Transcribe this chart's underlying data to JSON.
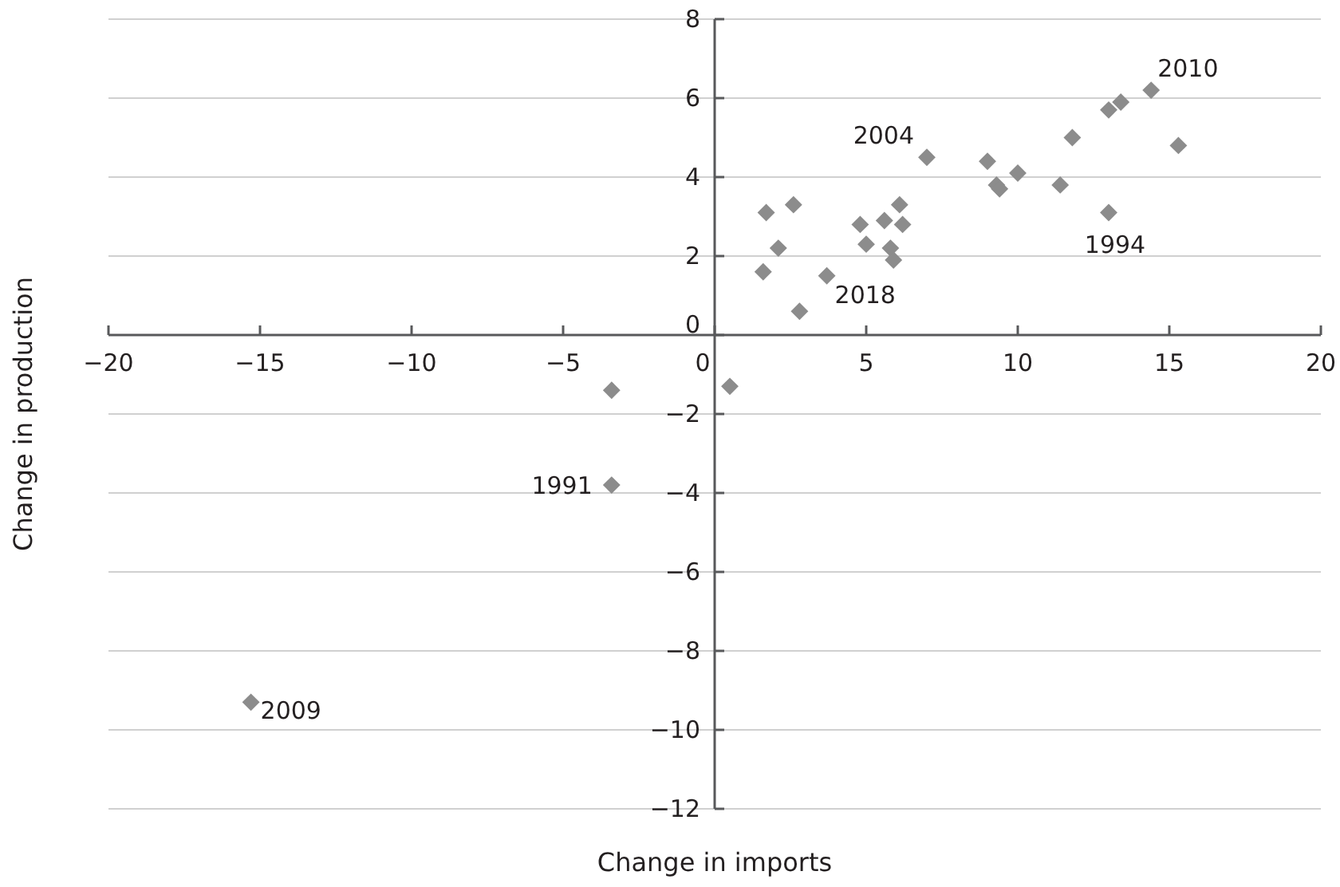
{
  "chart_data": {
    "type": "scatter",
    "xlabel": "Change in imports",
    "ylabel": "Change in production",
    "x": [
      1.6,
      1.7,
      2.1,
      2.6,
      2.8,
      3.7,
      4.8,
      5.0,
      5.6,
      5.8,
      5.9,
      6.1,
      6.2,
      7.0,
      9.0,
      9.3,
      9.4,
      10.0,
      11.4,
      11.8,
      13.0,
      13.4,
      14.4,
      15.3,
      13.0,
      0.5,
      -3.4,
      -3.4,
      -15.3
    ],
    "series": [
      {
        "color": "#8c8c8c",
        "values": [
          1.6,
          3.1,
          2.2,
          3.3,
          0.6,
          1.5,
          2.8,
          2.3,
          2.9,
          2.2,
          1.9,
          3.3,
          2.8,
          4.5,
          4.4,
          3.8,
          3.7,
          4.1,
          3.8,
          5.0,
          5.7,
          5.9,
          6.2,
          4.8,
          3.1,
          -1.3,
          -1.4,
          -3.8,
          -9.3
        ]
      }
    ],
    "xlim": [
      -20,
      20
    ],
    "xticks": [
      -20,
      -15,
      -10,
      -5,
      0,
      5,
      10,
      15,
      20
    ],
    "ylim": [
      -12,
      8
    ],
    "yticks": [
      -12,
      -10,
      -8,
      -6,
      -4,
      -2,
      0,
      2,
      4,
      6,
      8
    ],
    "grid": "y",
    "marker": "diamond",
    "annotations": [
      {
        "text": "2010",
        "x": 14.4,
        "y": 6.2
      },
      {
        "text": "2004",
        "x": 7.0,
        "y": 4.5
      },
      {
        "text": "1994",
        "x": 13.0,
        "y": 3.1
      },
      {
        "text": "2018",
        "x": 3.7,
        "y": 1.5
      },
      {
        "text": "1991",
        "x": -3.4,
        "y": -3.8
      },
      {
        "text": "2009",
        "x": -15.3,
        "y": -9.3
      }
    ]
  }
}
